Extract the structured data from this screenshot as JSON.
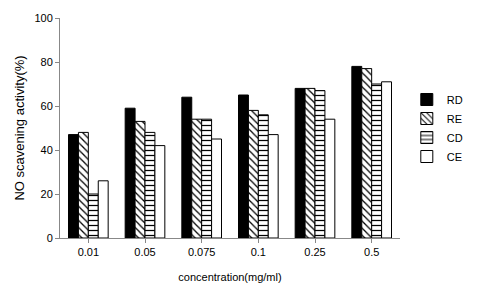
{
  "chart_data": {
    "type": "bar",
    "x_label": "concentration(mg/ml)",
    "y_label": "NO scavening activity(%)",
    "categories": [
      "0.01",
      "0.05",
      "0.075",
      "0.1",
      "0.25",
      "0.5"
    ],
    "series": [
      {
        "name": "RD",
        "color": "#000000",
        "marker": "solid",
        "values": [
          47,
          59,
          64,
          65,
          68,
          78
        ]
      },
      {
        "name": "RE",
        "color": "#ffffff",
        "marker": "diagonal",
        "values": [
          48,
          53,
          54,
          58,
          68,
          77
        ]
      },
      {
        "name": "CD",
        "color": "#ffffff",
        "marker": "horizontal",
        "values": [
          20,
          48,
          54,
          56,
          67,
          70
        ]
      },
      {
        "name": "CE",
        "color": "#ffffff",
        "marker": "solid",
        "values": [
          26,
          42,
          45,
          47,
          54,
          71
        ]
      }
    ],
    "ylim": [
      0,
      100
    ],
    "yticks": [
      0,
      20,
      40,
      60,
      80,
      100
    ],
    "grid": false,
    "legend": "right"
  }
}
